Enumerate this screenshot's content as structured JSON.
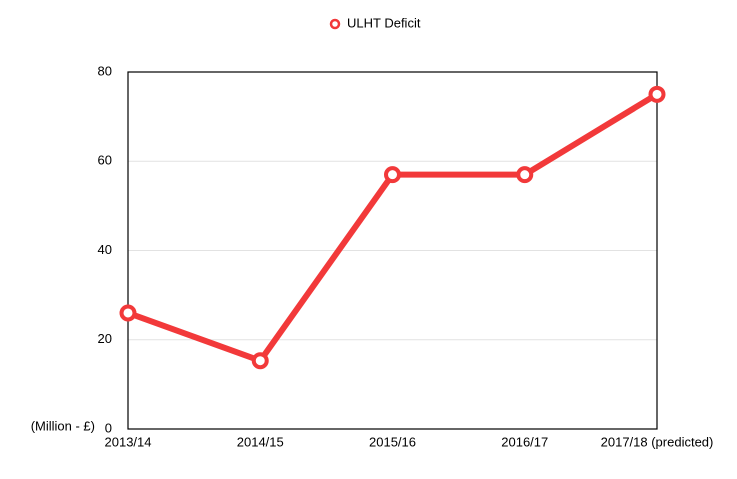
{
  "chart_data": {
    "type": "line",
    "y_label": "(Million - £)",
    "categories": [
      "2013/14",
      "2014/15",
      "2015/16",
      "2016/17",
      "2017/18 (predicted)"
    ],
    "series": [
      {
        "name": "ULHT Deficit",
        "color": "#f2393a",
        "values": [
          26,
          15.3,
          57,
          57,
          75
        ]
      }
    ],
    "ylim": [
      0,
      80
    ],
    "yticks": [
      0,
      20,
      40,
      60,
      80
    ],
    "grid": true,
    "legend": "top"
  }
}
